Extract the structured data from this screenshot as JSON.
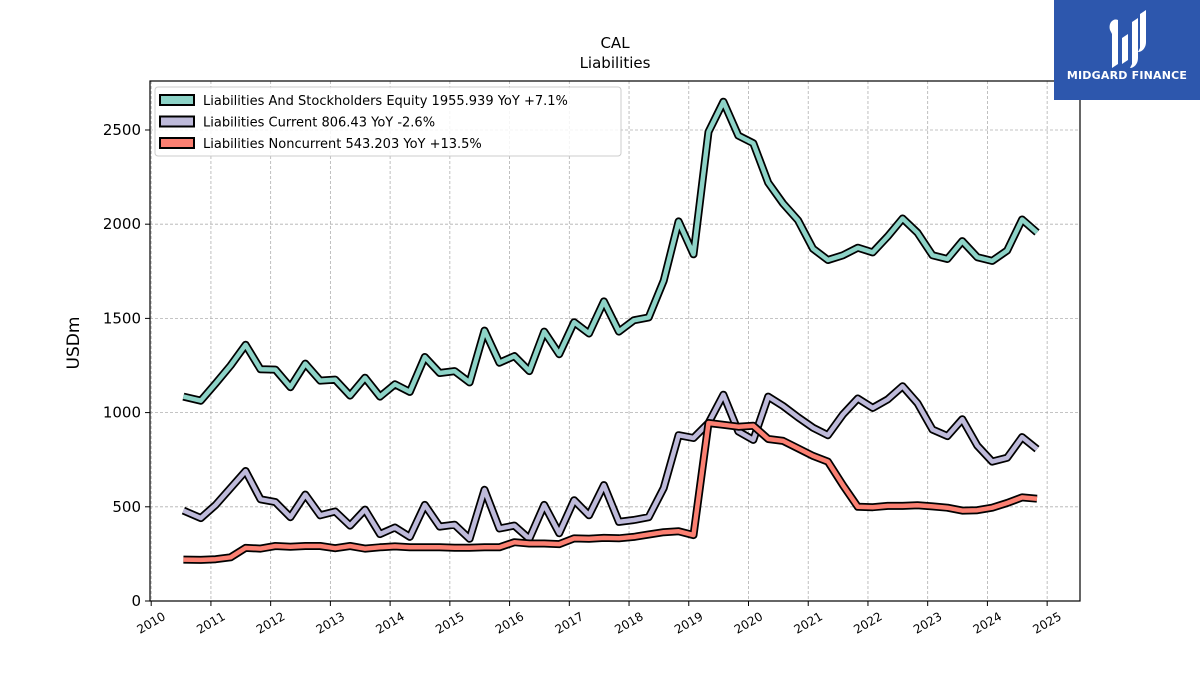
{
  "logo": {
    "text": "MIDGARD FINANCE"
  },
  "chart_data": {
    "type": "line",
    "title": "CAL",
    "subtitle": "Liabilities",
    "xlabel": "",
    "ylabel": "USDm",
    "xlim": [
      2009.98,
      2025.55
    ],
    "ylim": [
      0,
      2760
    ],
    "x_ticks": [
      "2010",
      "2011",
      "2012",
      "2013",
      "2014",
      "2015",
      "2016",
      "2017",
      "2018",
      "2019",
      "2020",
      "2021",
      "2022",
      "2023",
      "2024",
      "2025"
    ],
    "y_ticks": [
      "0",
      "500",
      "1000",
      "1500",
      "2000",
      "2500"
    ],
    "grid": true,
    "legend_position": "top-left",
    "series": [
      {
        "name": "Liabilities And Stockholders Equity",
        "legend_label": "Liabilities And Stockholders Equity  1955.939 YoY +7.1%",
        "color": "#8dd3c7",
        "x": [
          2010.54,
          2010.83,
          2011.08,
          2011.33,
          2011.58,
          2011.83,
          2012.08,
          2012.33,
          2012.58,
          2012.83,
          2013.08,
          2013.33,
          2013.58,
          2013.83,
          2014.08,
          2014.33,
          2014.58,
          2014.83,
          2015.08,
          2015.33,
          2015.58,
          2015.83,
          2016.08,
          2016.33,
          2016.58,
          2016.83,
          2017.08,
          2017.33,
          2017.58,
          2017.83,
          2018.08,
          2018.33,
          2018.58,
          2018.83,
          2019.08,
          2019.33,
          2019.58,
          2019.83,
          2020.08,
          2020.33,
          2020.58,
          2020.83,
          2021.08,
          2021.33,
          2021.58,
          2021.83,
          2022.08,
          2022.33,
          2022.58,
          2022.83,
          2023.08,
          2023.33,
          2023.58,
          2023.83,
          2024.08,
          2024.33,
          2024.58,
          2024.83
        ],
        "values": [
          1085,
          1063,
          1155,
          1250,
          1360,
          1230,
          1228,
          1135,
          1260,
          1170,
          1175,
          1090,
          1185,
          1085,
          1150,
          1110,
          1295,
          1210,
          1220,
          1160,
          1435,
          1265,
          1300,
          1220,
          1430,
          1310,
          1480,
          1420,
          1590,
          1430,
          1490,
          1505,
          1700,
          2015,
          1840,
          2490,
          2650,
          2470,
          2430,
          2220,
          2110,
          2020,
          1870,
          1810,
          1835,
          1875,
          1850,
          1935,
          2030,
          1955,
          1835,
          1815,
          1910,
          1825,
          1805,
          1860,
          2025,
          1956
        ]
      },
      {
        "name": "Liabilities Current",
        "legend_label": "Liabilities Current  806.43 YoY -2.6%",
        "color": "#bebada",
        "x": [
          2010.54,
          2010.83,
          2011.08,
          2011.33,
          2011.58,
          2011.83,
          2012.08,
          2012.33,
          2012.58,
          2012.83,
          2013.08,
          2013.33,
          2013.58,
          2013.83,
          2014.08,
          2014.33,
          2014.58,
          2014.83,
          2015.08,
          2015.33,
          2015.58,
          2015.83,
          2016.08,
          2016.33,
          2016.58,
          2016.83,
          2017.08,
          2017.33,
          2017.58,
          2017.83,
          2018.08,
          2018.33,
          2018.58,
          2018.83,
          2019.08,
          2019.33,
          2019.58,
          2019.83,
          2020.08,
          2020.33,
          2020.58,
          2020.83,
          2021.08,
          2021.33,
          2021.58,
          2021.83,
          2022.08,
          2022.33,
          2022.58,
          2022.83,
          2023.08,
          2023.33,
          2023.58,
          2023.83,
          2024.08,
          2024.33,
          2024.58,
          2024.83
        ],
        "values": [
          480,
          440,
          510,
          600,
          690,
          540,
          525,
          445,
          565,
          455,
          475,
          400,
          485,
          355,
          390,
          340,
          510,
          395,
          405,
          330,
          590,
          385,
          400,
          330,
          510,
          360,
          535,
          455,
          615,
          420,
          430,
          445,
          600,
          880,
          865,
          945,
          1095,
          900,
          855,
          1085,
          1035,
          975,
          920,
          880,
          990,
          1075,
          1025,
          1070,
          1140,
          1050,
          910,
          875,
          965,
          825,
          740,
          760,
          870,
          806
        ]
      },
      {
        "name": "Liabilities Noncurrent",
        "legend_label": "Liabilities Noncurrent  543.203 YoY +13.5%",
        "color": "#fb8072",
        "x": [
          2010.54,
          2010.83,
          2011.08,
          2011.33,
          2011.58,
          2011.83,
          2012.08,
          2012.33,
          2012.58,
          2012.83,
          2013.08,
          2013.33,
          2013.58,
          2013.83,
          2014.08,
          2014.33,
          2014.58,
          2014.83,
          2015.08,
          2015.33,
          2015.58,
          2015.83,
          2016.08,
          2016.33,
          2016.58,
          2016.83,
          2017.08,
          2017.33,
          2017.58,
          2017.83,
          2018.08,
          2018.33,
          2018.58,
          2018.83,
          2019.08,
          2019.33,
          2019.58,
          2019.83,
          2020.08,
          2020.33,
          2020.58,
          2020.83,
          2021.08,
          2021.33,
          2021.58,
          2021.83,
          2022.08,
          2022.33,
          2022.58,
          2022.83,
          2023.08,
          2023.33,
          2023.58,
          2023.83,
          2024.08,
          2024.33,
          2024.58,
          2024.83
        ],
        "values": [
          220,
          218,
          222,
          232,
          282,
          278,
          292,
          288,
          292,
          292,
          280,
          292,
          278,
          285,
          290,
          285,
          285,
          285,
          283,
          283,
          285,
          285,
          312,
          305,
          305,
          302,
          332,
          330,
          335,
          333,
          340,
          353,
          365,
          370,
          350,
          945,
          935,
          925,
          930,
          860,
          850,
          810,
          770,
          740,
          615,
          500,
          498,
          505,
          505,
          508,
          502,
          495,
          480,
          482,
          495,
          520,
          550,
          543
        ]
      }
    ]
  }
}
